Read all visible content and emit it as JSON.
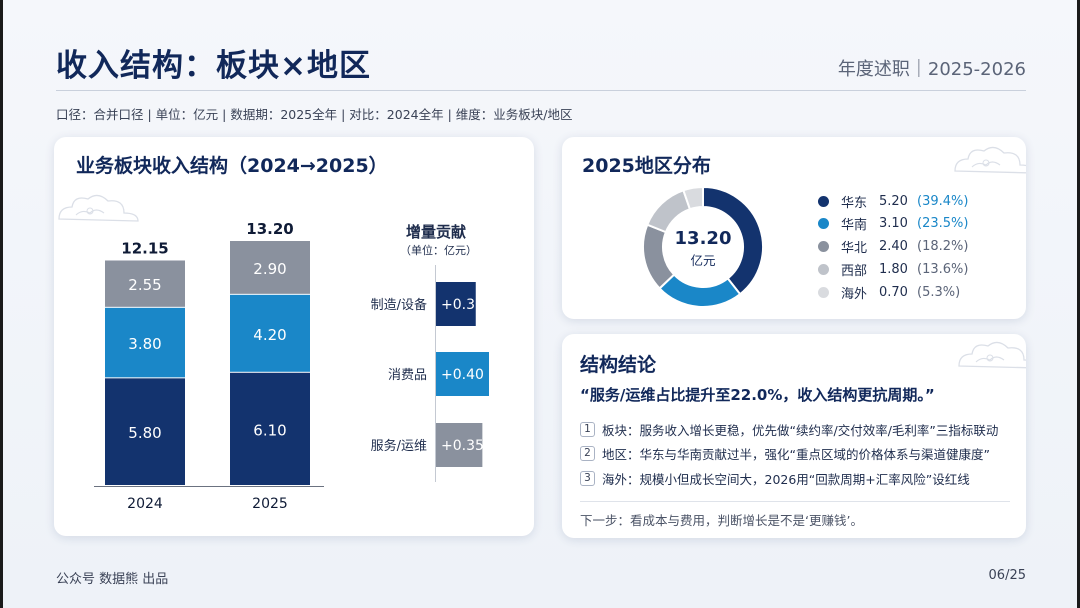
{
  "header": {
    "title": "收入结构：板块×地区",
    "report": "年度述职｜2025-2026",
    "caliber": "口径：合并口径 | 单位：亿元 | 数据期：2025全年 | 对比：2024全年 | 维度：业务板块/地区"
  },
  "segment_card": {
    "title": "业务板块收入结构（2024→2025）",
    "increment_title": "增量贡献",
    "increment_unit": "（单位：亿元）"
  },
  "region_card": {
    "title": "2025地区分布",
    "center_value": "13.20",
    "center_unit": "亿元"
  },
  "conclusion_card": {
    "title": "结构结论",
    "quote": "“服务/运维占比提升至22.0%，收入结构更抗周期。”",
    "points": [
      {
        "num": "1",
        "text": "板块：服务收入增长更稳，优先做“续约率/交付效率/毛利率”三指标联动"
      },
      {
        "num": "2",
        "text": "地区：华东与华南贡献过半，强化“重点区域的价格体系与渠道健康度”"
      },
      {
        "num": "3",
        "text": "海外：规模小但成长空间大，2026用“回款周期+汇率风险”设红线"
      }
    ],
    "next_step": "下一步：看成本与费用，判断增长是不是‘更赚钱’。"
  },
  "footer": {
    "left": "公众号 数据熊 出品",
    "page": "06/25"
  },
  "colors": {
    "navy": "#13336e",
    "blue": "#1a87c8",
    "gray": "#8a919e",
    "light_gray": "#bfc3ca",
    "lighter_gray": "#d9dbdf"
  },
  "chart_data": [
    {
      "type": "bar",
      "stacked": true,
      "title": "业务板块收入结构（2024→2025）",
      "categories": [
        "2024",
        "2025"
      ],
      "totals": [
        "12.15",
        "13.20"
      ],
      "series": [
        {
          "name": "制造/设备",
          "color": "#13336e",
          "values": [
            5.8,
            6.1
          ],
          "labels": [
            "5.80",
            "6.10"
          ]
        },
        {
          "name": "消费品",
          "color": "#1a87c8",
          "values": [
            3.8,
            4.2
          ],
          "labels": [
            "3.80",
            "4.20"
          ]
        },
        {
          "name": "服务/运维",
          "color": "#8a919e",
          "values": [
            2.55,
            2.9
          ],
          "labels": [
            "2.55",
            "2.90"
          ]
        }
      ],
      "ylim": [
        0,
        13.2
      ]
    },
    {
      "type": "bar",
      "orientation": "horizontal",
      "title": "增量贡献",
      "unit": "（单位：亿元）",
      "categories": [
        "制造/设备",
        "消费品",
        "服务/运维"
      ],
      "values": [
        0.3,
        0.4,
        0.35
      ],
      "labels": [
        "+0.30",
        "+0.40",
        "+0.35"
      ],
      "colors": [
        "#13336e",
        "#1a87c8",
        "#8a919e"
      ],
      "xlim": [
        0,
        0.4
      ]
    },
    {
      "type": "pie",
      "donut": true,
      "title": "2025地区分布",
      "center": "13.20",
      "center_unit": "亿元",
      "categories": [
        "华东",
        "华南",
        "华北",
        "西部",
        "海外"
      ],
      "values": [
        5.2,
        3.1,
        2.4,
        1.8,
        0.7
      ],
      "value_labels": [
        "5.20",
        "3.10",
        "2.40",
        "1.80",
        "0.70"
      ],
      "percent_labels": [
        "(39.4%)",
        "(23.5%)",
        "(18.2%)",
        "(13.6%)",
        "(5.3%)"
      ],
      "colors": [
        "#13336e",
        "#1a87c8",
        "#8a919e",
        "#bfc3ca",
        "#d9dbdf"
      ]
    }
  ]
}
